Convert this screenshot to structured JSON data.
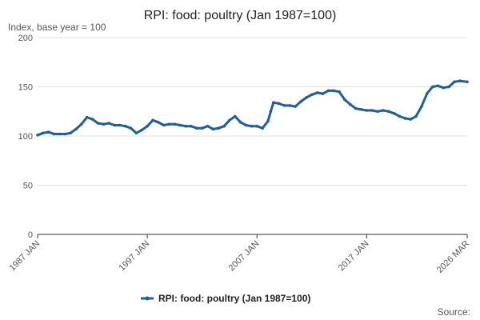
{
  "chart_data": {
    "type": "line",
    "title": "RPI: food: poultry (Jan 1987=100)",
    "subtitle": "Index, base year = 100",
    "xlabel": "",
    "ylabel": "",
    "xlim": [
      "1987-01",
      "2026-03"
    ],
    "ylim": [
      0,
      200
    ],
    "y_ticks": [
      "0",
      "50",
      "100",
      "150",
      "200"
    ],
    "x_ticks": [
      "1987 JAN",
      "1997 JAN",
      "2007 JAN",
      "2017 JAN",
      "2026 MAR"
    ],
    "x_tick_dates": [
      "1987-01",
      "1997-01",
      "2007-01",
      "2017-01",
      "2026-03"
    ],
    "grid": true,
    "legend_position": "bottom",
    "source_label": "Source:",
    "series": [
      {
        "name": "RPI: food: poultry (Jan 1987=100)",
        "color": "#206095",
        "x": [
          "1987-01",
          "1987-07",
          "1988-01",
          "1988-07",
          "1989-01",
          "1989-07",
          "1990-01",
          "1990-07",
          "1991-01",
          "1991-07",
          "1992-01",
          "1992-07",
          "1993-01",
          "1993-07",
          "1994-01",
          "1994-07",
          "1995-01",
          "1995-07",
          "1996-01",
          "1996-07",
          "1997-01",
          "1997-07",
          "1998-01",
          "1998-07",
          "1999-01",
          "1999-07",
          "2000-01",
          "2000-07",
          "2001-01",
          "2001-07",
          "2002-01",
          "2002-07",
          "2003-01",
          "2003-07",
          "2004-01",
          "2004-07",
          "2005-01",
          "2005-07",
          "2006-01",
          "2006-07",
          "2007-01",
          "2007-07",
          "2008-01",
          "2008-04",
          "2008-07",
          "2009-01",
          "2009-07",
          "2010-01",
          "2010-07",
          "2011-01",
          "2011-07",
          "2012-01",
          "2012-07",
          "2013-01",
          "2013-07",
          "2014-01",
          "2014-07",
          "2015-01",
          "2015-07",
          "2016-01",
          "2016-07",
          "2017-01",
          "2017-07",
          "2018-01",
          "2018-07",
          "2019-01",
          "2019-07",
          "2020-01",
          "2020-07",
          "2021-01",
          "2021-07",
          "2022-01",
          "2022-07",
          "2023-01",
          "2023-07",
          "2024-01",
          "2024-07",
          "2025-01",
          "2025-07",
          "2026-03"
        ],
        "values": [
          101,
          103,
          104,
          102,
          102,
          102,
          103,
          107,
          112,
          119,
          117,
          113,
          112,
          113,
          111,
          111,
          110,
          108,
          103,
          106,
          110,
          116,
          114,
          111,
          112,
          112,
          111,
          110,
          110,
          108,
          108,
          110,
          107,
          108,
          110,
          116,
          120,
          114,
          111,
          110,
          110,
          108,
          115,
          125,
          134,
          133,
          131,
          131,
          130,
          135,
          139,
          142,
          144,
          143,
          146,
          146,
          145,
          137,
          132,
          128,
          127,
          126,
          126,
          125,
          126,
          125,
          123,
          120,
          118,
          117,
          120,
          130,
          143,
          150,
          151,
          149,
          150,
          155,
          156,
          155
        ]
      }
    ]
  }
}
